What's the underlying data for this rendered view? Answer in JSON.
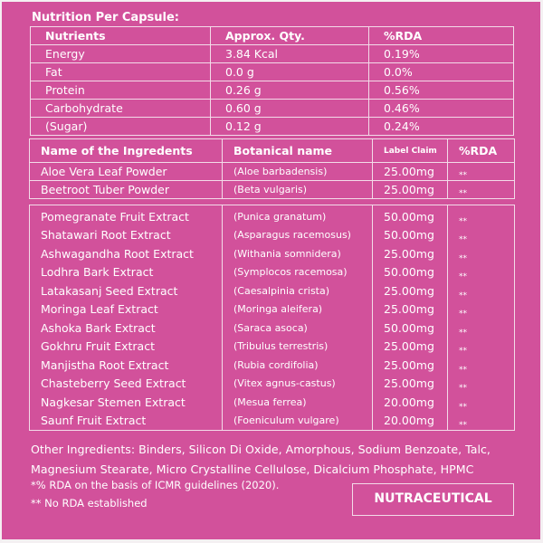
{
  "title": "Nutrition Per Capsule:",
  "nutrition": {
    "headers": [
      "Nutrients",
      "Approx. Qty.",
      "%RDA"
    ],
    "rows": [
      [
        "Energy",
        "3.84 Kcal",
        "0.19%"
      ],
      [
        "Fat",
        "0.0 g",
        "0.0%"
      ],
      [
        "Protein",
        "0.26 g",
        "0.56%"
      ],
      [
        "Carbohydrate",
        "0.60 g",
        "0.46%"
      ],
      [
        "(Sugar)",
        "0.12 g",
        "0.24%"
      ]
    ]
  },
  "ingredients": {
    "headers": [
      "Name of the Ingredents",
      "Botanical name",
      "Label Claim",
      "%RDA"
    ],
    "group1": [
      [
        "Aloe Vera Leaf Powder",
        "(Aloe barbadensis)",
        "25.00mg",
        "**"
      ],
      [
        "Beetroot Tuber Powder",
        "(Beta vulgaris)",
        "25.00mg",
        "**"
      ]
    ],
    "group2": [
      [
        "Pomegranate Fruit Extract",
        "(Punica granatum)",
        "50.00mg",
        "**"
      ],
      [
        "Shatawari Root Extract",
        "(Asparagus racemosus)",
        "50.00mg",
        "**"
      ],
      [
        "Ashwagandha Root Extract",
        "(Withania somnidera)",
        "25.00mg",
        "**"
      ],
      [
        "Lodhra Bark Extract",
        "(Symplocos racemosa)",
        "50.00mg",
        "**"
      ],
      [
        "Latakasanj Seed Extract",
        "(Caesalpinia crista)",
        "25.00mg",
        "**"
      ],
      [
        "Moringa Leaf Extract",
        "(Moringa aleifera)",
        "25.00mg",
        "**"
      ],
      [
        "Ashoka Bark Extract",
        "(Saraca asoca)",
        "50.00mg",
        "**"
      ],
      [
        "Gokhru Fruit Extract",
        "(Tribulus terrestris)",
        "25.00mg",
        "**"
      ],
      [
        "Manjistha Root Extract",
        "(Rubia cordifolia)",
        "25.00mg",
        "**"
      ],
      [
        "Chasteberry Seed Extract",
        "(Vitex agnus-castus)",
        "25.00mg",
        "**"
      ],
      [
        "Nagkesar Stemen Extract",
        "(Mesua ferrea)",
        "20.00mg",
        "**"
      ],
      [
        "Saunf Fruit Extract",
        "(Foeniculum vulgare)",
        "20.00mg",
        "**"
      ]
    ]
  },
  "other_ingredients": "Other Ingredients: Binders, Silicon Di Oxide, Amorphous, Sodium Benzoate, Talc, Magnesium Stearate, Micro Crystalline Cellulose, Dicalcium Phosphate, HPMC",
  "footnote1": "*% RDA on the basis of ICMR guidelines (2020).",
  "footnote2": "** No RDA  established",
  "badge": "NUTRACEUTICAL",
  "colors": {
    "background": "#d2519b",
    "lines": "#f3dbe9",
    "text": "#ffffff"
  }
}
